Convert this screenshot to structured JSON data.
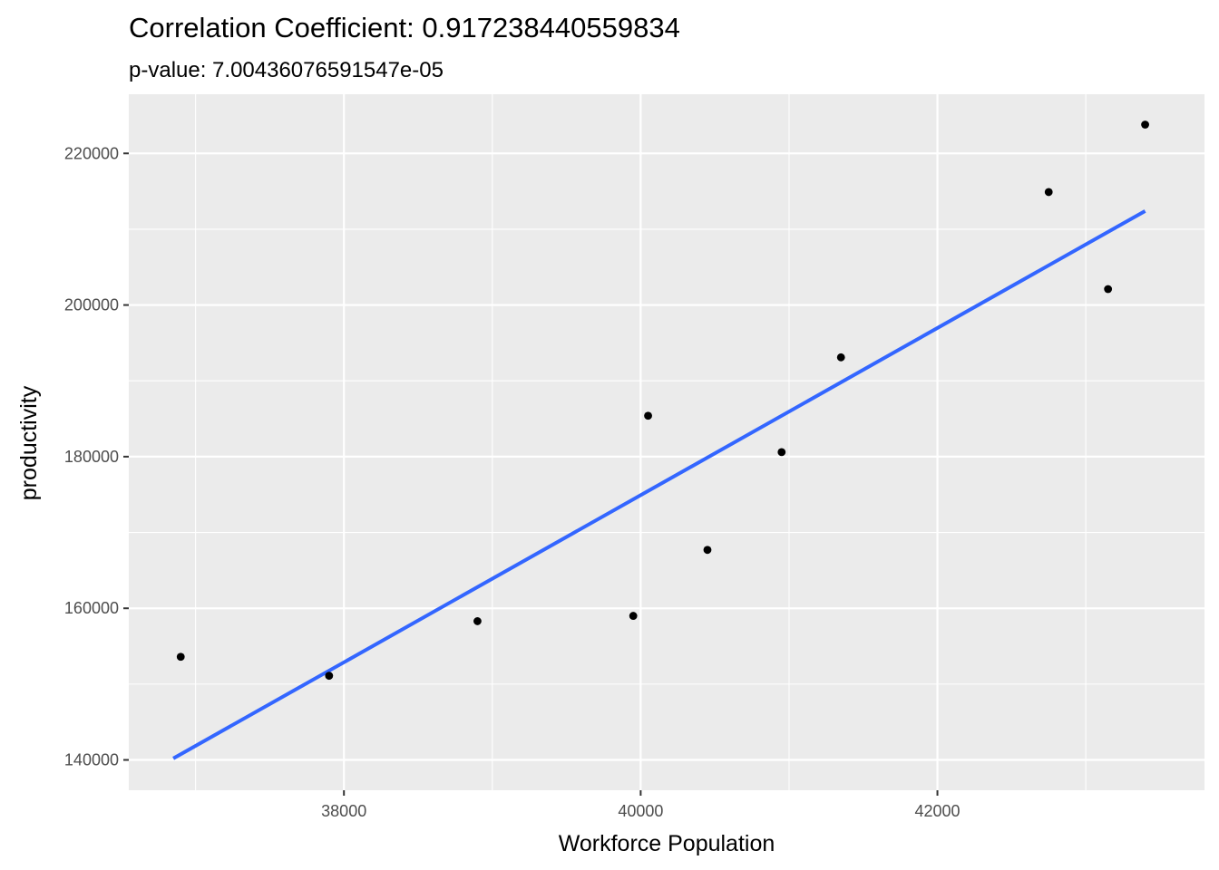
{
  "chart_data": {
    "type": "scatter",
    "title": "Correlation Coefficient: 0.917238440559834",
    "subtitle": "p-value: 7.00436076591547e-05",
    "xlabel": "Workforce Population",
    "ylabel": "productivity",
    "xlim": [
      36550,
      43800
    ],
    "ylim": [
      136000,
      227800
    ],
    "x_ticks": [
      38000,
      40000,
      42000
    ],
    "x_tick_labels": [
      "38000",
      "40000",
      "42000"
    ],
    "y_ticks": [
      140000,
      160000,
      180000,
      200000,
      220000
    ],
    "y_tick_labels": [
      "140000",
      "160000",
      "180000",
      "200000",
      "220000"
    ],
    "grid": true,
    "background": "#ebebeb",
    "grid_color": "#ffffff",
    "point_color": "#000000",
    "line_color": "#3366ff",
    "points": [
      {
        "x": 36900,
        "y": 153600
      },
      {
        "x": 37900,
        "y": 151100
      },
      {
        "x": 38900,
        "y": 158300
      },
      {
        "x": 39950,
        "y": 159000
      },
      {
        "x": 40050,
        "y": 185400
      },
      {
        "x": 40450,
        "y": 167700
      },
      {
        "x": 40950,
        "y": 180600
      },
      {
        "x": 41350,
        "y": 193100
      },
      {
        "x": 42750,
        "y": 214900
      },
      {
        "x": 43150,
        "y": 202100
      },
      {
        "x": 43400,
        "y": 223800
      }
    ],
    "fit_line": {
      "x": [
        36850,
        43400
      ],
      "y": [
        140200,
        212400
      ]
    }
  }
}
